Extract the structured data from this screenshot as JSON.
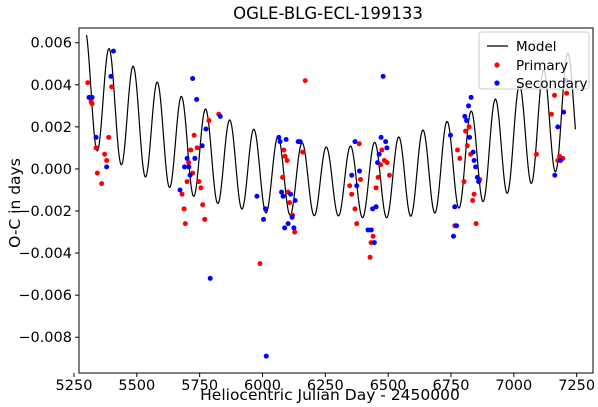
{
  "chart_data": {
    "type": "scatter",
    "title": "OGLE-BLG-ECL-199133",
    "xlabel": "Heliocentric Julian Day - 2450000",
    "ylabel": "O-C in days",
    "xlim": [
      5270,
      7315
    ],
    "ylim": [
      -0.0097,
      0.0067
    ],
    "x_ticks": [
      5250,
      5500,
      5750,
      6000,
      6250,
      6500,
      6750,
      7000,
      7250
    ],
    "y_ticks": [
      -0.008,
      -0.006,
      -0.004,
      -0.002,
      0.0,
      0.002,
      0.004,
      0.006
    ],
    "x_tick_labels": [
      "5250",
      "5500",
      "5750",
      "6000",
      "6250",
      "6500",
      "6750",
      "7000",
      "7250"
    ],
    "y_tick_labels": [
      "−0.008",
      "−0.006",
      "−0.004",
      "−0.002",
      "0.000",
      "0.002",
      "0.004",
      "0.006"
    ],
    "grid": false,
    "legend_position": "top-right",
    "model": {
      "name": "Model",
      "color": "#000000",
      "period_days": 96,
      "phase_day": 5294,
      "trend": {
        "center_day": 6320,
        "base": -0.0006,
        "curvature": 4.3e-09
      },
      "amplitude": {
        "start": 0.0027,
        "min": 0.0016,
        "end": 0.0027
      },
      "x_start": 5300,
      "x_end": 7245
    },
    "series": [
      {
        "name": "Primary",
        "color": "#ff0000",
        "points": [
          [
            5305,
            0.0041
          ],
          [
            5318,
            0.0032
          ],
          [
            5322,
            0.0031
          ],
          [
            5338,
            0.001
          ],
          [
            5343,
            -0.0002
          ],
          [
            5360,
            -0.0007
          ],
          [
            5372,
            0.0007
          ],
          [
            5380,
            0.0004
          ],
          [
            5388,
            0.0015
          ],
          [
            5400,
            0.0039
          ],
          [
            5680,
            -0.0012
          ],
          [
            5688,
            -0.0019
          ],
          [
            5693,
            -0.0026
          ],
          [
            5700,
            -0.0006
          ],
          [
            5706,
            0.0003
          ],
          [
            5715,
            0.0009
          ],
          [
            5722,
            -0.0002
          ],
          [
            5728,
            0.0016
          ],
          [
            5740,
            0.001
          ],
          [
            5747,
            -0.0006
          ],
          [
            5755,
            -0.0009
          ],
          [
            5762,
            -0.0017
          ],
          [
            5770,
            -0.0024
          ],
          [
            5787,
            0.0023
          ],
          [
            5826,
            0.0026
          ],
          [
            5990,
            -0.0045
          ],
          [
            6080,
            -0.0004
          ],
          [
            6085,
            0.0009
          ],
          [
            6090,
            0.0006
          ],
          [
            6098,
            0.0004
          ],
          [
            6102,
            -0.0011
          ],
          [
            6108,
            -0.0016
          ],
          [
            6120,
            -0.0022
          ],
          [
            6128,
            -0.003
          ],
          [
            6160,
            0.0008
          ],
          [
            6170,
            0.0042
          ],
          [
            6347,
            -0.0008
          ],
          [
            6355,
            -0.0012
          ],
          [
            6368,
            -0.0019
          ],
          [
            6375,
            -0.0026
          ],
          [
            6385,
            0.0012
          ],
          [
            6390,
            -0.0005
          ],
          [
            6428,
            -0.0042
          ],
          [
            6432,
            -0.0035
          ],
          [
            6440,
            -0.0032
          ],
          [
            6452,
            -0.0009
          ],
          [
            6460,
            -0.0004
          ],
          [
            6470,
            0.0002
          ],
          [
            6475,
            0.0009
          ],
          [
            6485,
            0.0004
          ],
          [
            6496,
            0.0003
          ],
          [
            6505,
            -0.0003
          ],
          [
            6765,
            -0.0027
          ],
          [
            6776,
            0.0009
          ],
          [
            6785,
            0.0005
          ],
          [
            6802,
            -0.0006
          ],
          [
            6808,
            0.0018
          ],
          [
            6815,
            0.0011
          ],
          [
            6822,
            0.002
          ],
          [
            6828,
            0.0007
          ],
          [
            6836,
            -0.0015
          ],
          [
            6842,
            -0.0012
          ],
          [
            6850,
            -0.0026
          ],
          [
            6864,
            -0.0005
          ],
          [
            7090,
            0.0007
          ],
          [
            7150,
            0.0026
          ],
          [
            7162,
            0.0035
          ],
          [
            7175,
            0.0004
          ],
          [
            7182,
            0.0006
          ],
          [
            7188,
            0.0005
          ],
          [
            7195,
            0.0005
          ],
          [
            7210,
            0.0036
          ]
        ]
      },
      {
        "name": "Secondary",
        "color": "#0000ff",
        "points": [
          [
            5310,
            0.0034
          ],
          [
            5322,
            0.0034
          ],
          [
            5338,
            0.0015
          ],
          [
            5380,
            0.0001
          ],
          [
            5397,
            0.0044
          ],
          [
            5407,
            0.0056
          ],
          [
            5672,
            -0.001
          ],
          [
            5690,
            0.0001
          ],
          [
            5700,
            0.0005
          ],
          [
            5707,
            0.0001
          ],
          [
            5712,
            -0.0003
          ],
          [
            5722,
            0.0043
          ],
          [
            5731,
            0.0005
          ],
          [
            5738,
            0.0033
          ],
          [
            5760,
            0.0011
          ],
          [
            5775,
            0.0019
          ],
          [
            5792,
            -0.0052
          ],
          [
            5832,
            0.0025
          ],
          [
            5978,
            -0.0013
          ],
          [
            6004,
            -0.0024
          ],
          [
            6012,
            -0.0019
          ],
          [
            6015,
            -0.0089
          ],
          [
            6065,
            0.0015
          ],
          [
            6070,
            0.0013
          ],
          [
            6076,
            -0.0011
          ],
          [
            6082,
            -0.0013
          ],
          [
            6088,
            -0.0028
          ],
          [
            6094,
            0.0014
          ],
          [
            6102,
            -0.0026
          ],
          [
            6112,
            -0.0012
          ],
          [
            6118,
            -0.0023
          ],
          [
            6125,
            -0.0028
          ],
          [
            6130,
            -0.0015
          ],
          [
            6142,
            0.0013
          ],
          [
            6150,
            0.0013
          ],
          [
            6355,
            -0.0003
          ],
          [
            6368,
            0.0013
          ],
          [
            6375,
            -0.0008
          ],
          [
            6386,
            -0.0001
          ],
          [
            6420,
            -0.0029
          ],
          [
            6433,
            -0.0029
          ],
          [
            6438,
            -0.0019
          ],
          [
            6445,
            -0.0035
          ],
          [
            6452,
            -0.0018
          ],
          [
            6458,
            0.0003
          ],
          [
            6464,
            0.0007
          ],
          [
            6472,
            0.0015
          ],
          [
            6480,
            0.0044
          ],
          [
            6490,
            0.0013
          ],
          [
            6495,
            0.001
          ],
          [
            6748,
            0.0016
          ],
          [
            6760,
            -0.0032
          ],
          [
            6765,
            -0.0018
          ],
          [
            6772,
            -0.0027
          ],
          [
            6805,
            0.0025
          ],
          [
            6812,
            0.0023
          ],
          [
            6820,
            0.003
          ],
          [
            6824,
            0.0015
          ],
          [
            6830,
            0.0034
          ],
          [
            6838,
            0.0008
          ],
          [
            6842,
            0.0004
          ],
          [
            6848,
            0.0001
          ],
          [
            6855,
            -0.0004
          ],
          [
            6860,
            -0.0006
          ],
          [
            7163,
            -0.0003
          ],
          [
            7175,
            0.002
          ],
          [
            7185,
            0.0004
          ],
          [
            7198,
            0.0027
          ],
          [
            7206,
            0.0042
          ]
        ]
      }
    ]
  }
}
